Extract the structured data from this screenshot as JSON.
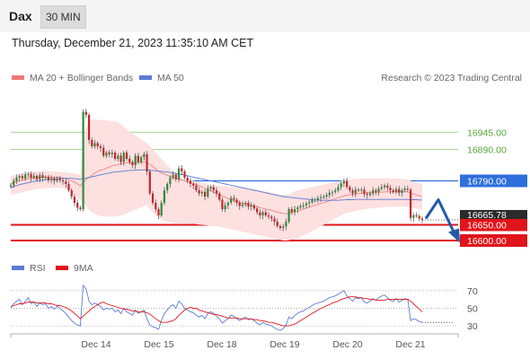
{
  "header": {
    "symbol": "Dax",
    "timeframe": "30 MIN"
  },
  "timestamp": "Thursday, December 21, 2023 11:35:10 AM CET",
  "legend": {
    "bollinger": "MA 20 + Bollinger Bands",
    "ma50": "MA 50",
    "credit": "Research © 2023 Trading Central"
  },
  "rsi_legend": {
    "rsi": "RSI",
    "ma9": "9MA"
  },
  "colors": {
    "bollinger": "#f07878",
    "band_fill": "#fde0e0",
    "ma50": "#5b7bd5",
    "level_green": "#8cc276",
    "resistance": "#2d6fdb",
    "support": "#e0141b",
    "rsi": "#5b7bd5",
    "arrow": "#2559a8",
    "candle_up": "#2e8b3a",
    "candle_down": "#c2262d"
  },
  "chart_data": [
    {
      "type": "candlestick",
      "x_ticks": [
        "Dec 14",
        "Dec 15",
        "Dec 18",
        "Dec 19",
        "Dec 20",
        "Dec 21"
      ],
      "ylim": [
        16580,
        17080
      ],
      "levels": [
        {
          "value": 16945,
          "label": "16945.00",
          "style": "green-thin"
        },
        {
          "value": 16890,
          "label": "16890.00",
          "style": "green-thin"
        },
        {
          "value": 16790,
          "label": "16790.00",
          "style": "resistance"
        },
        {
          "value": 16650,
          "label": "16650.00",
          "style": "support"
        },
        {
          "value": 16600,
          "label": "16600.00",
          "style": "support"
        }
      ],
      "last_price": {
        "value": 16665.78,
        "label": "16665.78"
      },
      "projection": [
        16670,
        16730,
        16610
      ],
      "close": [
        16776,
        16790,
        16800,
        16805,
        16798,
        16810,
        16812,
        16800,
        16806,
        16795,
        16808,
        16800,
        16802,
        16792,
        16798,
        16790,
        16796,
        16792,
        16788,
        16780,
        16760,
        16740,
        16720,
        16705,
        16700,
        17010,
        17000,
        16920,
        16900,
        16910,
        16900,
        16895,
        16870,
        16880,
        16875,
        16880,
        16860,
        16870,
        16850,
        16880,
        16860,
        16850,
        16840,
        16870,
        16850,
        16865,
        16875,
        16820,
        16750,
        16720,
        16700,
        16680,
        16720,
        16760,
        16780,
        16800,
        16810,
        16795,
        16830,
        16820,
        16800,
        16790,
        16780,
        16775,
        16760,
        16750,
        16755,
        16740,
        16765,
        16770,
        16760,
        16750,
        16730,
        16700,
        16712,
        16720,
        16735,
        16730,
        16720,
        16710,
        16715,
        16720,
        16708,
        16712,
        16702,
        16690,
        16680,
        16690,
        16680,
        16676,
        16670,
        16660,
        16646,
        16640,
        16645,
        16660,
        16700,
        16690,
        16700,
        16705,
        16710,
        16712,
        16718,
        16722,
        16728,
        16730,
        16735,
        16738,
        16740,
        16745,
        16752,
        16755,
        16760,
        16770,
        16782,
        16790,
        16770,
        16760,
        16750,
        16762,
        16760,
        16762,
        16748,
        16745,
        16750,
        16760,
        16755,
        16765,
        16770,
        16775,
        16768,
        16760,
        16755,
        16764,
        16752,
        16760,
        16765,
        16762,
        16672,
        16680,
        16678,
        16670,
        16665.78
      ],
      "ma20": [
        16780,
        16785,
        16788,
        16790,
        16792,
        16795,
        16797,
        16798,
        16799,
        16800,
        16801,
        16801,
        16802,
        16802,
        16802,
        16801,
        16801,
        16800,
        16799,
        16797,
        16794,
        16790,
        16786,
        16780,
        16774,
        16785,
        16795,
        16800,
        16808,
        16815,
        16820,
        16824,
        16826,
        16830,
        16834,
        16838,
        16840,
        16842,
        16844,
        16846,
        16848,
        16848,
        16847,
        16848,
        16849,
        16850,
        16850,
        16848,
        16843,
        16836,
        16828,
        16820,
        16815,
        16812,
        16808,
        16804,
        16800,
        16797,
        16795,
        16793,
        16790,
        16788,
        16785,
        16782,
        16778,
        16774,
        16770,
        16766,
        16762,
        16758,
        16754,
        16750,
        16746,
        16742,
        16738,
        16734,
        16730,
        16727,
        16724,
        16721,
        16718,
        16716,
        16714,
        16712,
        16710,
        16708,
        16705,
        16702,
        16700,
        16698,
        16696,
        16694,
        16691,
        16688,
        16686,
        16685,
        16687,
        16690,
        16692,
        16694,
        16697,
        16700,
        16703,
        16706,
        16709,
        16712,
        16715,
        16718,
        16721,
        16724,
        16727,
        16730,
        16733,
        16736,
        16739,
        16742,
        16744,
        16746,
        16747,
        16748,
        16749,
        16750,
        16751,
        16752,
        16752,
        16753,
        16753,
        16754,
        16754,
        16755,
        16755,
        16755,
        16755,
        16755,
        16755,
        16755,
        16755,
        16755,
        16751,
        16748,
        16745,
        16742,
        16740
      ],
      "ma50": [
        16768,
        16772,
        16775,
        16778,
        16780,
        16782,
        16784,
        16786,
        16788,
        16790,
        16791,
        16792,
        16793,
        16794,
        16795,
        16796,
        16797,
        16797,
        16798,
        16798,
        16798,
        16798,
        16797,
        16796,
        16795,
        16797,
        16799,
        16801,
        16803,
        16805,
        16807,
        16809,
        16811,
        16813,
        16815,
        16817,
        16818,
        16819,
        16820,
        16821,
        16822,
        16823,
        16823,
        16824,
        16824,
        16825,
        16825,
        16825,
        16824,
        16823,
        16822,
        16821,
        16820,
        16819,
        16818,
        16817,
        16815,
        16814,
        16812,
        16810,
        16808,
        16806,
        16804,
        16802,
        16800,
        16798,
        16796,
        16794,
        16792,
        16790,
        16788,
        16786,
        16784,
        16782,
        16780,
        16778,
        16776,
        16774,
        16772,
        16770,
        16768,
        16766,
        16764,
        16762,
        16760,
        16758,
        16756,
        16754,
        16752,
        16750,
        16748,
        16746,
        16744,
        16742,
        16740,
        16739,
        16738,
        16737,
        16736,
        16735,
        16734,
        16733,
        16732,
        16731,
        16730,
        16729,
        16729,
        16728,
        16728,
        16728,
        16728,
        16728,
        16728,
        16728,
        16729,
        16729,
        16730,
        16730,
        16730,
        16731,
        16731,
        16731,
        16731,
        16731,
        16731,
        16731,
        16731,
        16731,
        16731,
        16731,
        16731,
        16731,
        16731,
        16731,
        16731,
        16731,
        16731,
        16731,
        16730,
        16730,
        16730,
        16729,
        16729
      ],
      "bb_upper": [
        16805,
        16808,
        16810,
        16812,
        16814,
        16816,
        16818,
        16819,
        16820,
        16820,
        16820,
        16820,
        16821,
        16821,
        16821,
        16820,
        16820,
        16819,
        16818,
        16817,
        16816,
        16815,
        16814,
        16812,
        16810,
        16900,
        16960,
        16980,
        16985,
        16985,
        16985,
        16984,
        16983,
        16982,
        16981,
        16980,
        16979,
        16978,
        16970,
        16962,
        16955,
        16948,
        16940,
        16935,
        16928,
        16920,
        16915,
        16910,
        16900,
        16890,
        16880,
        16870,
        16860,
        16850,
        16840,
        16830,
        16822,
        16815,
        16808,
        16800,
        16797,
        16794,
        16792,
        16790,
        16788,
        16786,
        16784,
        16782,
        16780,
        16778,
        16777,
        16776,
        16775,
        16774,
        16773,
        16772,
        16771,
        16770,
        16769,
        16768,
        16767,
        16766,
        16765,
        16764,
        16763,
        16762,
        16760,
        16758,
        16756,
        16754,
        16752,
        16750,
        16748,
        16746,
        16745,
        16745,
        16748,
        16752,
        16756,
        16760,
        16762,
        16764,
        16766,
        16768,
        16770,
        16772,
        16774,
        16776,
        16778,
        16780,
        16782,
        16784,
        16786,
        16788,
        16790,
        16792,
        16793,
        16794,
        16795,
        16796,
        16797,
        16798,
        16798,
        16798,
        16798,
        16798,
        16798,
        16798,
        16798,
        16798,
        16798,
        16798,
        16798,
        16798,
        16797,
        16796,
        16795,
        16794,
        16790,
        16787,
        16784,
        16782,
        16780
      ],
      "bb_lower": [
        16745,
        16748,
        16750,
        16752,
        16754,
        16756,
        16758,
        16760,
        16762,
        16764,
        16765,
        16766,
        16767,
        16768,
        16768,
        16768,
        16768,
        16768,
        16767,
        16765,
        16760,
        16752,
        16745,
        16738,
        16730,
        16720,
        16710,
        16700,
        16690,
        16685,
        16680,
        16678,
        16677,
        16676,
        16676,
        16676,
        16676,
        16678,
        16680,
        16683,
        16686,
        16690,
        16694,
        16698,
        16702,
        16706,
        16710,
        16712,
        16700,
        16690,
        16680,
        16672,
        16666,
        16662,
        16660,
        16658,
        16656,
        16655,
        16655,
        16655,
        16655,
        16655,
        16654,
        16653,
        16652,
        16651,
        16650,
        16649,
        16648,
        16647,
        16646,
        16645,
        16644,
        16642,
        16640,
        16638,
        16636,
        16634,
        16632,
        16630,
        16628,
        16626,
        16624,
        16622,
        16620,
        16618,
        16616,
        16614,
        16612,
        16610,
        16608,
        16606,
        16604,
        16602,
        16600,
        16600,
        16601,
        16603,
        16605,
        16608,
        16612,
        16616,
        16620,
        16625,
        16630,
        16635,
        16640,
        16645,
        16650,
        16655,
        16660,
        16665,
        16670,
        16675,
        16680,
        16685,
        16688,
        16690,
        16692,
        16694,
        16696,
        16698,
        16700,
        16701,
        16702,
        16703,
        16704,
        16705,
        16706,
        16707,
        16708,
        16708,
        16708,
        16708,
        16708,
        16708,
        16708,
        16708,
        16706,
        16704,
        16702,
        16700,
        16698
      ]
    },
    {
      "type": "line",
      "ylim": [
        25,
        80
      ],
      "y_ticks": [
        70,
        50,
        30
      ],
      "series": [
        {
          "name": "RSI",
          "values": [
            50,
            55,
            58,
            60,
            54,
            58,
            62,
            55,
            57,
            52,
            56,
            54,
            55,
            50,
            52,
            49,
            52,
            50,
            47,
            44,
            40,
            36,
            33,
            31,
            30,
            76,
            72,
            58,
            54,
            56,
            54,
            52,
            48,
            50,
            49,
            50,
            46,
            48,
            44,
            50,
            46,
            44,
            42,
            48,
            44,
            46,
            48,
            38,
            31,
            29,
            28,
            26,
            36,
            44,
            48,
            52,
            54,
            50,
            58,
            55,
            50,
            48,
            46,
            45,
            42,
            40,
            42,
            38,
            44,
            46,
            44,
            41,
            38,
            33,
            36,
            38,
            42,
            41,
            38,
            36,
            38,
            40,
            37,
            38,
            36,
            33,
            31,
            34,
            32,
            31,
            30,
            28,
            26,
            25,
            27,
            31,
            40,
            38,
            42,
            44,
            46,
            47,
            49,
            51,
            53,
            55,
            56,
            57,
            58,
            60,
            62,
            63,
            64,
            66,
            68,
            70,
            64,
            61,
            58,
            62,
            61,
            62,
            57,
            56,
            58,
            61,
            59,
            62,
            64,
            65,
            62,
            59,
            58,
            61,
            57,
            59,
            61,
            60,
            36,
            38,
            37,
            35,
            34
          ]
        },
        {
          "name": "9MA",
          "values": [
            52,
            53,
            54,
            55,
            55,
            56,
            57,
            57,
            57,
            56,
            56,
            56,
            56,
            55,
            55,
            54,
            53,
            53,
            52,
            51,
            49,
            47,
            44,
            41,
            38,
            41,
            44,
            47,
            50,
            52,
            54,
            56,
            57,
            55,
            54,
            53,
            52,
            51,
            50,
            49,
            49,
            48,
            47,
            47,
            46,
            46,
            46,
            45,
            43,
            41,
            38,
            36,
            34,
            34,
            34,
            35,
            36,
            38,
            42,
            45,
            48,
            50,
            51,
            50,
            50,
            48,
            47,
            46,
            45,
            44,
            43,
            43,
            42,
            41,
            40,
            39,
            39,
            39,
            39,
            38,
            38,
            38,
            38,
            38,
            37,
            37,
            36,
            36,
            35,
            34,
            34,
            33,
            32,
            31,
            30,
            30,
            30,
            31,
            32,
            34,
            36,
            38,
            40,
            42,
            44,
            46,
            48,
            50,
            51,
            53,
            54,
            56,
            57,
            58,
            60,
            61,
            62,
            63,
            63,
            63,
            62,
            62,
            61,
            61,
            60,
            60,
            59,
            59,
            59,
            59,
            60,
            60,
            60,
            60,
            60,
            60,
            60,
            60,
            58,
            55,
            52,
            49,
            46
          ]
        }
      ]
    }
  ]
}
